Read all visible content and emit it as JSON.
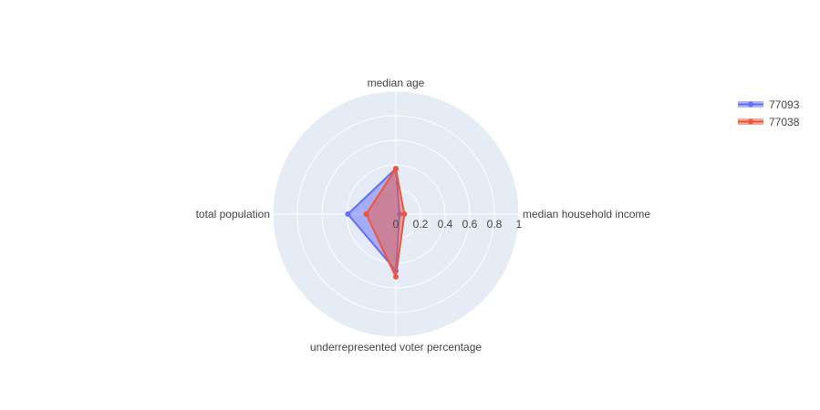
{
  "chart_data": {
    "type": "radar",
    "axes": [
      "median household income",
      "median age",
      "total population",
      "underrepresented voter percentage"
    ],
    "radial_range": [
      0,
      1
    ],
    "radial_ticks": [
      "0",
      "0.2",
      "0.4",
      "0.6",
      "0.8",
      "1"
    ],
    "radial_tick_values": [
      0,
      0.2,
      0.4,
      0.6,
      0.8,
      1
    ],
    "series": [
      {
        "name": "77093",
        "values": [
          0.03,
          0.37,
          0.39,
          0.46
        ],
        "color": "#636efa"
      },
      {
        "name": "77038",
        "values": [
          0.07,
          0.37,
          0.24,
          0.51
        ],
        "color": "#ef553b"
      }
    ],
    "legend_position": "top-right",
    "grid": true,
    "background_color": "#e5ecf6"
  }
}
